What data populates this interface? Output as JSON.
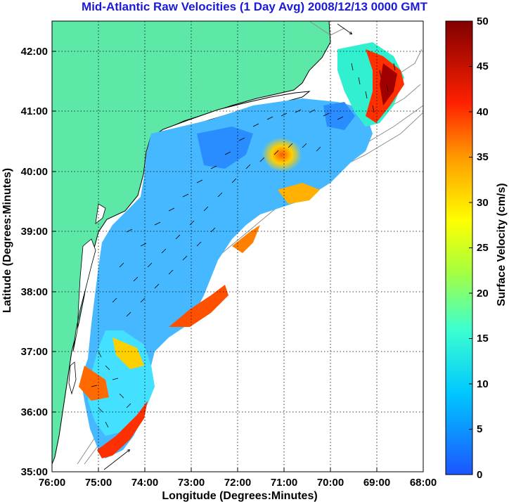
{
  "title": "Mid-Atlantic Raw Velocities (1 Day Avg) 2008/12/13 0000 GMT",
  "map": {
    "x_label": "Longitude (Degrees:Minutes)",
    "y_label": "Latitude (Degrees:Minutes)",
    "x_ticks": [
      "76:00",
      "75:00",
      "74:00",
      "73:00",
      "72:00",
      "71:00",
      "70:00",
      "69:00",
      "68:00"
    ],
    "y_ticks": [
      "42:00",
      "41:00",
      "40:00",
      "39:00",
      "38:00",
      "37:00",
      "36:00",
      "35:00"
    ],
    "lon_range": [
      -76,
      -68
    ],
    "lat_range": [
      35,
      42.5
    ],
    "land_color": "#5ee8a8",
    "gridlines": "dotted"
  },
  "colorbar": {
    "label": "Surface Velocity (cm/s)",
    "ticks": [
      "50",
      "45",
      "40",
      "35",
      "30",
      "25",
      "20",
      "15",
      "10",
      "5",
      "0"
    ],
    "range": [
      0,
      50
    ],
    "colormap": "jet"
  }
}
